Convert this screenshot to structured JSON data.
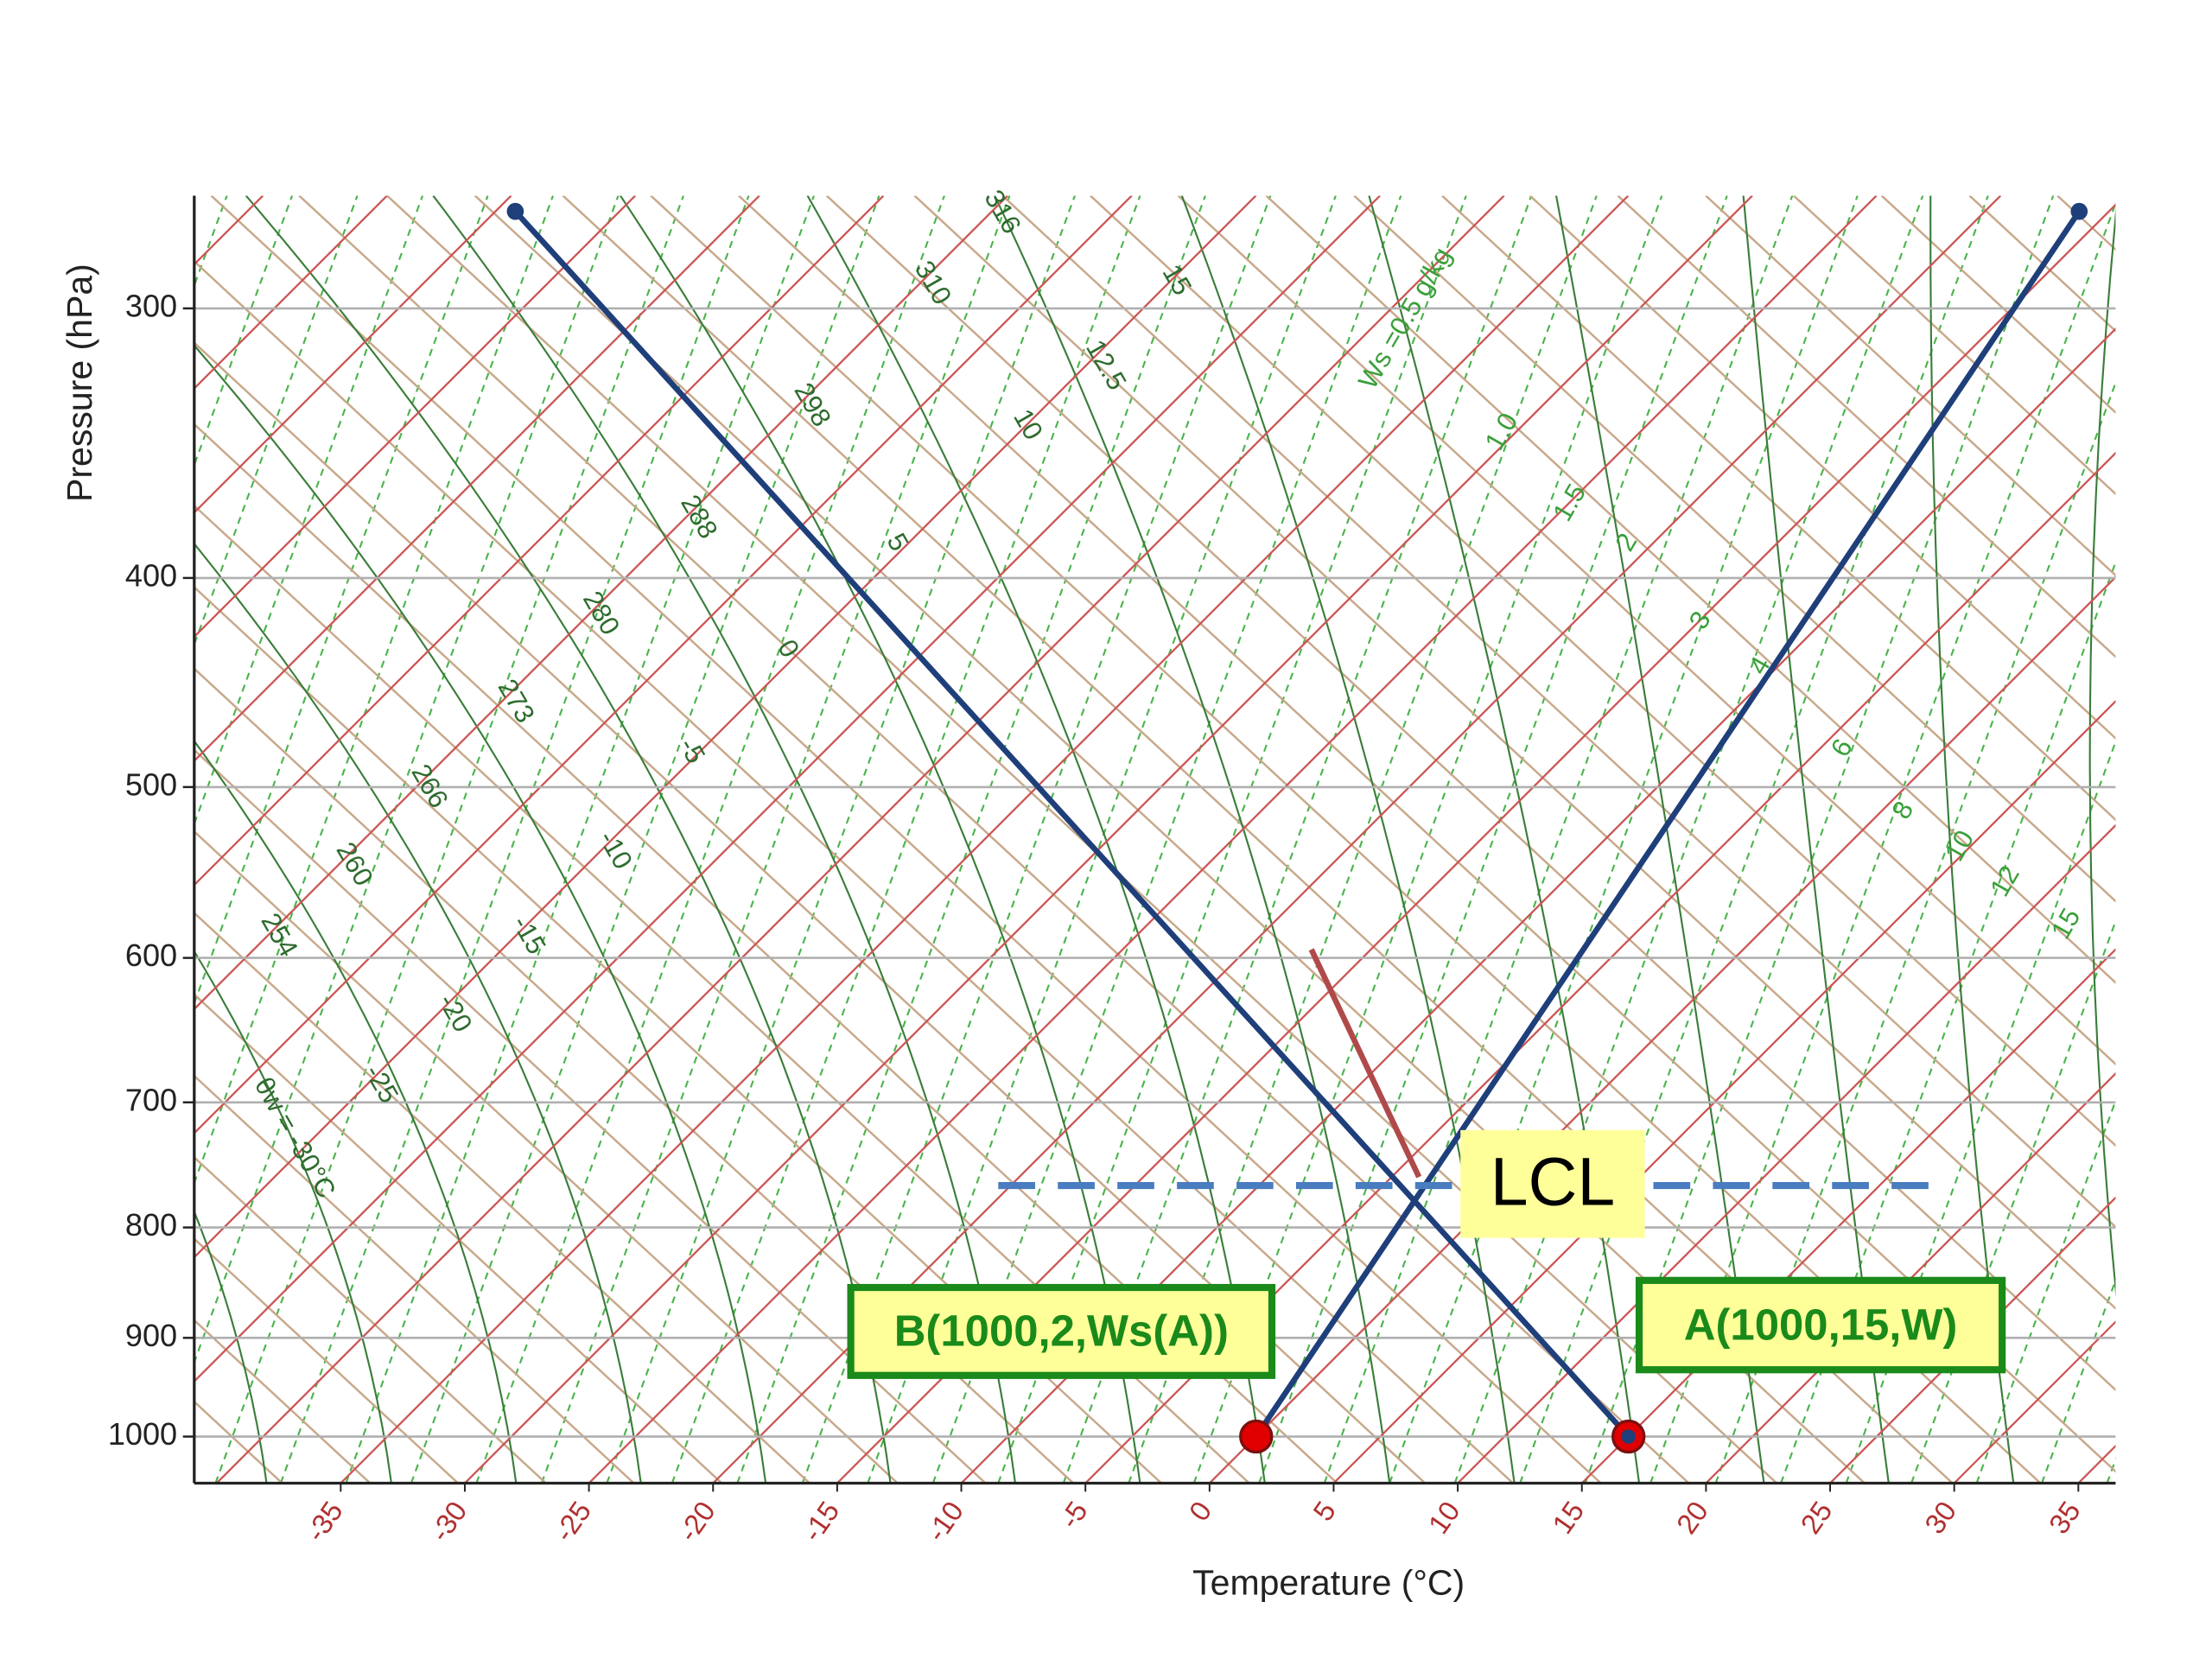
{
  "chart_data": {
    "type": "skew-t",
    "x_label": "Temperature (°C)",
    "y_label": "Pressure (hPa)",
    "xlim": [
      -40.9,
      36.5
    ],
    "ylim": [
      1051,
      266
    ],
    "y_log": true,
    "xticks": [
      -35,
      -30,
      -25,
      -20,
      -15,
      -10,
      -5,
      0,
      5,
      10,
      15,
      20,
      25,
      30,
      35
    ],
    "yticks": [
      300,
      400,
      500,
      600,
      700,
      800,
      900,
      1000
    ],
    "grid": true,
    "lines": [
      {
        "color": "#1f3f7a",
        "x": [
          15,
          -79.2
        ],
        "y": [
          1000,
          270.5
        ]
      },
      {
        "color": "#1f3f7a",
        "x": [
          0,
          -16.2
        ],
        "y": [
          1000,
          270.5
        ]
      },
      {
        "color": "#b04a4a",
        "x": [
          -17.4,
          -3.9
        ],
        "y": [
          594.6,
          758
        ]
      },
      {
        "color": "#4a7cc0",
        "dashed": true,
        "x": [
          -20.5,
          17.0
        ],
        "y": [
          765,
          765
        ]
      }
    ],
    "points": {
      "color": "#e00000",
      "x": [
        15,
        0
      ],
      "y": [
        1000,
        1000
      ]
    },
    "isentrope_labels": [
      "316",
      "310",
      "298",
      "288",
      "280",
      "273",
      "266",
      "260",
      "254"
    ],
    "moist_adiabat_labels": [
      "15",
      "12.5",
      "10",
      "5",
      "0",
      "-5",
      "-10",
      "-15",
      "-20",
      "-25",
      "θw = -30°C"
    ],
    "mixing_ratio_labels": [
      "Ws =0.5 g/kg",
      "1.0",
      "1.5",
      "2",
      "3",
      "4",
      "6",
      "8",
      "10",
      "12",
      "15"
    ],
    "callouts": [
      "LCL",
      "A(1000,15,W)",
      "B(1000,2,Ws(A))"
    ]
  }
}
